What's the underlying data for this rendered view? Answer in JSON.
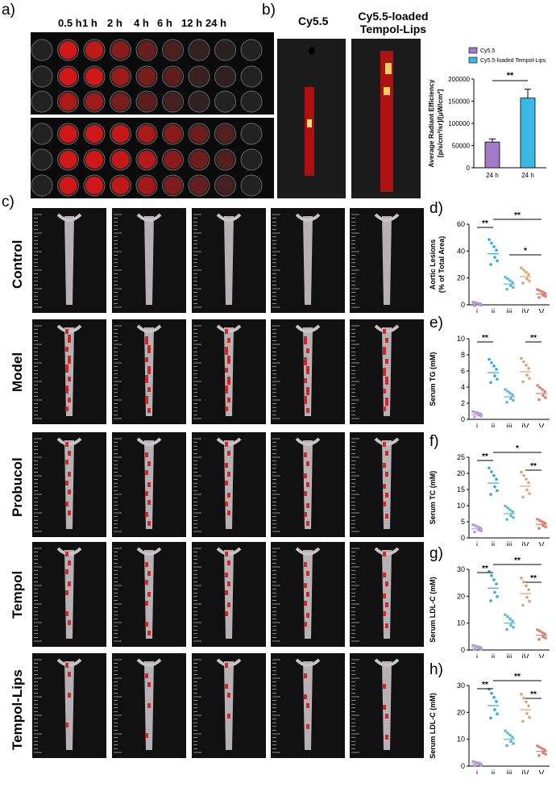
{
  "panels": {
    "a": {
      "letter": "a)",
      "timepoints": [
        "0.5 h",
        "1 h",
        "2 h",
        "4 h",
        "6 h",
        "12 h",
        "24 h"
      ]
    },
    "b": {
      "letter": "b)",
      "image_labels": [
        "Cy5.5",
        "Cy5.5-loaded\nTempol-Lips"
      ],
      "chart_data": {
        "type": "bar",
        "categories": [
          "24 h",
          "24 h"
        ],
        "series": [
          {
            "name": "Cy5.5",
            "values": [
              58000,
              0
            ],
            "color": "#a17ac8"
          },
          {
            "name": "Cy5.5-loaded Tempol-Lips",
            "values": [
              0,
              157000
            ],
            "color": "#3bb7e6"
          }
        ],
        "errors": [
          7000,
          20000
        ],
        "ylabel": "Average Radiant Efficiency\n[p/s/cm²/sr]/[μW/cm²]",
        "ylim": [
          0,
          200000
        ],
        "yticks": [
          "0",
          "50000",
          "100000",
          "150000",
          "200000"
        ],
        "significance": "**",
        "legend": [
          "Cy5.5",
          "Cy5.5-loaded Tempol-Lips"
        ]
      }
    },
    "c": {
      "letter": "c)",
      "row_labels": [
        "Control",
        "Model",
        "Probucol",
        "Tempol",
        "Tempol-Lips"
      ]
    },
    "d": {
      "letter": "d)",
      "ylabel": "Aortic Lesions\n(% of Total Area)",
      "yticks": [
        "0",
        "20",
        "40",
        "60"
      ],
      "ylim": [
        0,
        60
      ],
      "categories": [
        "i",
        "ii",
        "iii",
        "iV",
        "V"
      ],
      "means": [
        0.5,
        38,
        15.5,
        21,
        8
      ],
      "sig": [
        "**",
        "**",
        "*"
      ]
    },
    "e": {
      "letter": "e)",
      "ylabel": "Serum  TG (mM)",
      "yticks": [
        "0",
        "2",
        "4",
        "6",
        "8",
        "10"
      ],
      "ylim": [
        0,
        10
      ],
      "categories": [
        "i",
        "ii",
        "iii",
        "iV",
        "V"
      ],
      "means": [
        0.6,
        5.8,
        2.8,
        5.9,
        3.2
      ],
      "sig": [
        "**",
        "**"
      ]
    },
    "f": {
      "letter": "f)",
      "ylabel": "Serum TC (mM)",
      "yticks": [
        "0",
        "5",
        "10",
        "15",
        "20",
        "25"
      ],
      "ylim": [
        0,
        25
      ],
      "categories": [
        "i",
        "ii",
        "iii",
        "iV",
        "V"
      ],
      "means": [
        2.8,
        17,
        7.5,
        16,
        4.2
      ],
      "sig": [
        "**",
        "*",
        "**"
      ]
    },
    "g": {
      "letter": "g)",
      "ylabel": "Serum LDL-C (mM)",
      "yticks": [
        "0",
        "10",
        "20",
        "30"
      ],
      "ylim": [
        0,
        30
      ],
      "categories": [
        "i",
        "ii",
        "iii",
        "iV",
        "V"
      ],
      "means": [
        0.8,
        23,
        10,
        21,
        5.5
      ],
      "sig": [
        "**",
        "**",
        "**"
      ]
    },
    "h": {
      "letter": "h)",
      "ylabel": "Serum LDL-C (mM)",
      "yticks": [
        "0",
        "10",
        "20",
        "30"
      ],
      "ylim": [
        0,
        30
      ],
      "categories": [
        "i",
        "ii",
        "iii",
        "iV",
        "V"
      ],
      "means": [
        0.8,
        22.5,
        10,
        21,
        5.5
      ],
      "sig": [
        "**",
        "**",
        "**"
      ]
    }
  },
  "group_colors": [
    "#b39ad4",
    "#2fa8e0",
    "#5fb7d6",
    "#e0a070",
    "#e07b6b"
  ]
}
